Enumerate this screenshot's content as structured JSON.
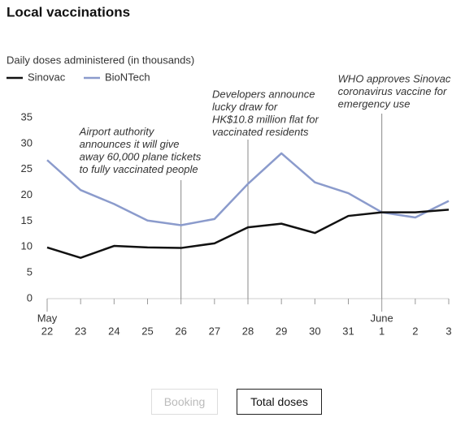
{
  "chart_data": {
    "type": "line",
    "title": "Local vaccinations",
    "y_label": "Daily doses administered (in thousands)",
    "categories": [
      "22",
      "23",
      "24",
      "25",
      "26",
      "27",
      "28",
      "29",
      "30",
      "31",
      "1",
      "2",
      "3"
    ],
    "months": [
      "May",
      null,
      null,
      null,
      null,
      null,
      null,
      null,
      null,
      null,
      "June",
      null,
      null
    ],
    "series": [
      {
        "name": "Sinovac",
        "color": "#111111",
        "values": [
          9.9,
          7.9,
          10.2,
          9.9,
          9.8,
          10.7,
          13.8,
          14.5,
          12.7,
          16.0,
          16.7,
          16.7,
          17.2
        ]
      },
      {
        "name": "BioNTech",
        "color": "#8b9bcc",
        "values": [
          26.8,
          21.0,
          18.3,
          15.1,
          14.2,
          15.4,
          22.2,
          28.1,
          22.5,
          20.4,
          16.7,
          15.7,
          18.9
        ]
      }
    ],
    "ylim": [
      0,
      35
    ],
    "yticks": [
      0,
      5,
      10,
      15,
      20,
      25,
      30,
      35
    ],
    "grid": false,
    "annotations": [
      {
        "category": "26",
        "lines": [
          "Airport authority",
          "announces it will give",
          "away 60,000 plane tickets",
          "to fully vaccinated people"
        ]
      },
      {
        "category": "28",
        "lines": [
          "Developers announce",
          "lucky draw for",
          "HK$10.8 million flat for",
          "vaccinated residents"
        ]
      },
      {
        "category": "1",
        "lines": [
          "WHO approves Sinovac",
          "coronavirus vaccine for",
          "emergency use"
        ]
      }
    ]
  },
  "buttons": [
    "Booking",
    "Total doses"
  ]
}
